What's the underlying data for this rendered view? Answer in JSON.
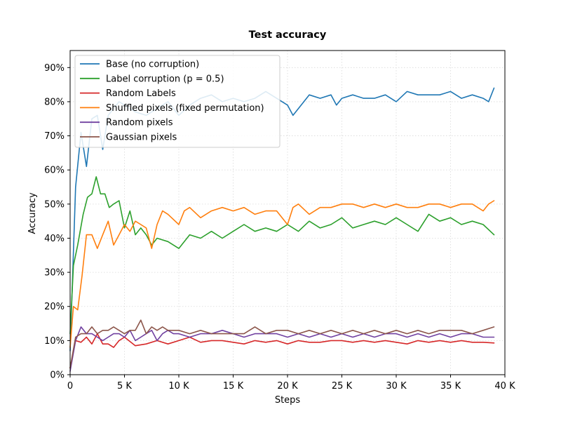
{
  "chart_data": {
    "type": "line",
    "title": "Test accuracy",
    "xlabel": "Steps",
    "ylabel": "Accuracy",
    "xlim": [
      0,
      40000
    ],
    "ylim": [
      0,
      0.95
    ],
    "xticks": [
      {
        "value": 0,
        "label": "0"
      },
      {
        "value": 5000,
        "label": "5 K"
      },
      {
        "value": 10000,
        "label": "10 K"
      },
      {
        "value": 15000,
        "label": "15 K"
      },
      {
        "value": 20000,
        "label": "20 K"
      },
      {
        "value": 25000,
        "label": "25 K"
      },
      {
        "value": 30000,
        "label": "30 K"
      },
      {
        "value": 35000,
        "label": "35 K"
      },
      {
        "value": 40000,
        "label": "40 K"
      }
    ],
    "yticks": [
      {
        "value": 0.0,
        "label": "0%"
      },
      {
        "value": 0.1,
        "label": "10%"
      },
      {
        "value": 0.2,
        "label": "20%"
      },
      {
        "value": 0.3,
        "label": "30%"
      },
      {
        "value": 0.4,
        "label": "40%"
      },
      {
        "value": 0.5,
        "label": "50%"
      },
      {
        "value": 0.6,
        "label": "60%"
      },
      {
        "value": 0.7,
        "label": "70%"
      },
      {
        "value": 0.8,
        "label": "80%"
      },
      {
        "value": 0.9,
        "label": "90%"
      }
    ],
    "grid": true,
    "legend_position": "top-left",
    "series": [
      {
        "name": "Base (no corruption)",
        "color": "#1f77b4",
        "x": [
          0,
          500,
          1000,
          1500,
          2000,
          2500,
          3000,
          3500,
          4000,
          4500,
          5000,
          6000,
          7000,
          8000,
          9000,
          10000,
          11000,
          12000,
          13000,
          14000,
          15000,
          16000,
          17000,
          18000,
          19000,
          20000,
          20500,
          21000,
          22000,
          23000,
          24000,
          24500,
          25000,
          26000,
          27000,
          28000,
          29000,
          30000,
          31000,
          32000,
          33000,
          34000,
          35000,
          36000,
          37000,
          38000,
          38500,
          39000
        ],
        "y": [
          0.07,
          0.55,
          0.71,
          0.61,
          0.75,
          0.76,
          0.66,
          0.76,
          0.78,
          0.8,
          0.79,
          0.77,
          0.76,
          0.78,
          0.8,
          0.76,
          0.79,
          0.81,
          0.82,
          0.8,
          0.81,
          0.8,
          0.81,
          0.83,
          0.81,
          0.79,
          0.76,
          0.78,
          0.82,
          0.81,
          0.82,
          0.79,
          0.81,
          0.82,
          0.81,
          0.81,
          0.82,
          0.8,
          0.83,
          0.82,
          0.82,
          0.82,
          0.83,
          0.81,
          0.82,
          0.81,
          0.8,
          0.84
        ]
      },
      {
        "name": "Label corruption (p = 0.5)",
        "color": "#2ca02c",
        "x": [
          0,
          300,
          700,
          1200,
          1600,
          2000,
          2400,
          2800,
          3200,
          3600,
          4000,
          4500,
          5000,
          5500,
          6000,
          6500,
          7000,
          7500,
          8000,
          9000,
          10000,
          11000,
          12000,
          13000,
          14000,
          15000,
          16000,
          17000,
          18000,
          19000,
          20000,
          21000,
          22000,
          23000,
          24000,
          25000,
          26000,
          27000,
          28000,
          29000,
          30000,
          31000,
          32000,
          33000,
          34000,
          35000,
          36000,
          37000,
          38000,
          39000
        ],
        "y": [
          0.12,
          0.32,
          0.38,
          0.47,
          0.52,
          0.53,
          0.58,
          0.53,
          0.53,
          0.49,
          0.5,
          0.51,
          0.43,
          0.48,
          0.41,
          0.43,
          0.41,
          0.38,
          0.4,
          0.39,
          0.37,
          0.41,
          0.4,
          0.42,
          0.4,
          0.42,
          0.44,
          0.42,
          0.43,
          0.42,
          0.44,
          0.42,
          0.45,
          0.43,
          0.44,
          0.46,
          0.43,
          0.44,
          0.45,
          0.44,
          0.46,
          0.44,
          0.42,
          0.47,
          0.45,
          0.46,
          0.44,
          0.45,
          0.44,
          0.41
        ]
      },
      {
        "name": "Random Labels",
        "color": "#d62728",
        "x": [
          0,
          500,
          1000,
          1500,
          2000,
          2500,
          3000,
          3500,
          4000,
          4500,
          5000,
          6000,
          7000,
          8000,
          9000,
          10000,
          11000,
          12000,
          13000,
          14000,
          15000,
          16000,
          17000,
          18000,
          19000,
          20000,
          21000,
          22000,
          23000,
          24000,
          25000,
          26000,
          27000,
          28000,
          29000,
          30000,
          31000,
          32000,
          33000,
          34000,
          35000,
          36000,
          37000,
          38000,
          39000
        ],
        "y": [
          0.02,
          0.1,
          0.095,
          0.11,
          0.09,
          0.12,
          0.09,
          0.09,
          0.08,
          0.1,
          0.11,
          0.085,
          0.09,
          0.1,
          0.09,
          0.1,
          0.11,
          0.095,
          0.1,
          0.1,
          0.095,
          0.09,
          0.1,
          0.095,
          0.1,
          0.09,
          0.1,
          0.095,
          0.095,
          0.1,
          0.1,
          0.095,
          0.1,
          0.095,
          0.1,
          0.095,
          0.09,
          0.1,
          0.095,
          0.1,
          0.095,
          0.1,
          0.095,
          0.095,
          0.093
        ]
      },
      {
        "name": "Shuffled pixels (fixed permutation)",
        "color": "#ff7f0e",
        "x": [
          0,
          300,
          700,
          1100,
          1500,
          2000,
          2500,
          3000,
          3500,
          4000,
          4500,
          5000,
          5500,
          6000,
          6500,
          7000,
          7500,
          8000,
          8500,
          9000,
          10000,
          10500,
          11000,
          12000,
          13000,
          14000,
          15000,
          16000,
          17000,
          18000,
          19000,
          20000,
          20500,
          21000,
          22000,
          23000,
          24000,
          25000,
          26000,
          27000,
          28000,
          29000,
          30000,
          31000,
          32000,
          33000,
          34000,
          35000,
          36000,
          37000,
          38000,
          38500,
          39000
        ],
        "y": [
          0.08,
          0.2,
          0.19,
          0.29,
          0.41,
          0.41,
          0.37,
          0.41,
          0.45,
          0.38,
          0.41,
          0.44,
          0.42,
          0.45,
          0.44,
          0.43,
          0.37,
          0.44,
          0.48,
          0.47,
          0.44,
          0.48,
          0.49,
          0.46,
          0.48,
          0.49,
          0.48,
          0.49,
          0.47,
          0.48,
          0.48,
          0.44,
          0.49,
          0.5,
          0.47,
          0.49,
          0.49,
          0.5,
          0.5,
          0.49,
          0.5,
          0.49,
          0.5,
          0.49,
          0.49,
          0.5,
          0.5,
          0.49,
          0.5,
          0.5,
          0.48,
          0.5,
          0.51
        ]
      },
      {
        "name": "Random pixels",
        "color": "#7040a0",
        "x": [
          0,
          500,
          1000,
          1500,
          2000,
          2500,
          3000,
          3500,
          4000,
          4500,
          5000,
          5500,
          6000,
          6500,
          7000,
          7500,
          8000,
          8500,
          9000,
          9500,
          10000,
          11000,
          12000,
          13000,
          14000,
          15000,
          16000,
          17000,
          18000,
          19000,
          20000,
          21000,
          22000,
          23000,
          24000,
          25000,
          26000,
          27000,
          28000,
          29000,
          30000,
          31000,
          32000,
          33000,
          34000,
          35000,
          36000,
          37000,
          38000,
          39000
        ],
        "y": [
          0.01,
          0.1,
          0.14,
          0.12,
          0.12,
          0.11,
          0.1,
          0.11,
          0.12,
          0.12,
          0.11,
          0.13,
          0.1,
          0.11,
          0.12,
          0.13,
          0.1,
          0.12,
          0.13,
          0.12,
          0.12,
          0.11,
          0.12,
          0.12,
          0.13,
          0.12,
          0.11,
          0.12,
          0.12,
          0.12,
          0.11,
          0.12,
          0.11,
          0.12,
          0.11,
          0.12,
          0.11,
          0.12,
          0.11,
          0.12,
          0.12,
          0.11,
          0.12,
          0.11,
          0.12,
          0.11,
          0.12,
          0.12,
          0.11,
          0.11
        ]
      },
      {
        "name": "Gaussian pixels",
        "color": "#8c564b",
        "x": [
          0,
          500,
          1000,
          1500,
          2000,
          2500,
          3000,
          3500,
          4000,
          4500,
          5000,
          5500,
          6000,
          6500,
          7000,
          7500,
          8000,
          8500,
          9000,
          9500,
          10000,
          11000,
          12000,
          13000,
          14000,
          15000,
          16000,
          17000,
          18000,
          19000,
          20000,
          21000,
          22000,
          23000,
          24000,
          25000,
          26000,
          27000,
          28000,
          29000,
          30000,
          31000,
          32000,
          33000,
          34000,
          35000,
          36000,
          37000,
          38000,
          39000
        ],
        "y": [
          0.02,
          0.11,
          0.12,
          0.12,
          0.14,
          0.12,
          0.13,
          0.13,
          0.14,
          0.13,
          0.12,
          0.13,
          0.13,
          0.16,
          0.12,
          0.14,
          0.13,
          0.14,
          0.13,
          0.13,
          0.13,
          0.12,
          0.13,
          0.12,
          0.12,
          0.12,
          0.12,
          0.14,
          0.12,
          0.13,
          0.13,
          0.12,
          0.13,
          0.12,
          0.13,
          0.12,
          0.13,
          0.12,
          0.13,
          0.12,
          0.13,
          0.12,
          0.13,
          0.12,
          0.13,
          0.13,
          0.13,
          0.12,
          0.13,
          0.14
        ]
      }
    ]
  }
}
